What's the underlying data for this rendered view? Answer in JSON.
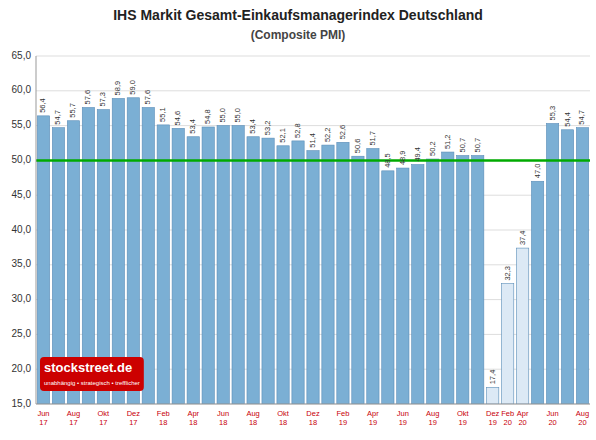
{
  "chart_data": {
    "type": "bar",
    "title": "IHS Markit Gesamt-Einkaufsmanagerindex Deutschland",
    "subtitle": "(Composite PMI)",
    "categories": [
      "Jun 17",
      null,
      "Aug 17",
      null,
      "Okt 17",
      null,
      "Dez 17",
      null,
      "Feb 18",
      null,
      "Apr 18",
      null,
      "Jun 18",
      null,
      "Aug 18",
      null,
      "Okt 18",
      null,
      "Dez 18",
      null,
      "Feb 19",
      null,
      "Apr 19",
      null,
      "Jun 19",
      null,
      "Aug 19",
      null,
      "Okt 19",
      null,
      "Dez 19",
      "Feb 20",
      "Apr 20",
      null,
      "Jun 20",
      null,
      "Aug 20"
    ],
    "values": [
      56.4,
      54.7,
      55.7,
      57.6,
      57.3,
      58.9,
      59.0,
      57.6,
      55.1,
      54.6,
      53.4,
      54.8,
      55.0,
      55.0,
      53.4,
      53.2,
      52.1,
      52.8,
      51.4,
      52.2,
      52.6,
      50.6,
      51.7,
      48.5,
      48.9,
      49.4,
      50.2,
      51.2,
      50.7,
      50.7,
      17.4,
      32.3,
      37.4,
      47.0,
      55.3,
      54.4,
      54.7
    ],
    "value_labels": [
      "56,4",
      "54,7",
      "55,7",
      "57,6",
      "57,3",
      "58,9",
      "59,0",
      "57,6",
      "55,1",
      "54,6",
      "53,4",
      "54,8",
      "55,0",
      "55,0",
      "53,4",
      "53,2",
      "52,1",
      "52,8",
      "51,4",
      "52,2",
      "52,6",
      "50,6",
      "51,7",
      "48,5",
      "48,9",
      "49,4",
      "50,2",
      "51,2",
      "50,7",
      "50,7",
      "17,4",
      "32,3",
      "37,4",
      "47,0",
      "55,3",
      "54,4",
      "54,7"
    ],
    "colors": [
      "#7bafd4",
      "#7bafd4",
      "#7bafd4",
      "#7bafd4",
      "#7bafd4",
      "#7bafd4",
      "#7bafd4",
      "#7bafd4",
      "#7bafd4",
      "#7bafd4",
      "#7bafd4",
      "#7bafd4",
      "#7bafd4",
      "#7bafd4",
      "#7bafd4",
      "#7bafd4",
      "#7bafd4",
      "#7bafd4",
      "#7bafd4",
      "#7bafd4",
      "#7bafd4",
      "#7bafd4",
      "#7bafd4",
      "#7bafd4",
      "#7bafd4",
      "#7bafd4",
      "#7bafd4",
      "#7bafd4",
      "#7bafd4",
      "#7bafd4",
      "#dce9f5",
      "#dce9f5",
      "#dce9f5",
      "#7bafd4",
      "#7bafd4",
      "#7bafd4",
      "#7bafd4"
    ],
    "reference_line": {
      "value": 50.0,
      "color": "#00aa00"
    },
    "ylim": [
      15.0,
      65.0
    ],
    "yticks": [
      {
        "value": 15.0,
        "label": "15,0"
      },
      {
        "value": 20.0,
        "label": "20,0"
      },
      {
        "value": 25.0,
        "label": "25,0"
      },
      {
        "value": 30.0,
        "label": "30,0"
      },
      {
        "value": 35.0,
        "label": "35,0"
      },
      {
        "value": 40.0,
        "label": "40,0"
      },
      {
        "value": 45.0,
        "label": "45,0"
      },
      {
        "value": 50.0,
        "label": "50,0"
      },
      {
        "value": 55.0,
        "label": "55,0"
      },
      {
        "value": 60.0,
        "label": "60,0"
      },
      {
        "value": 65.0,
        "label": "65,0"
      }
    ],
    "grid": true,
    "data_labels": true,
    "annotations": [
      "stockstreet.de",
      "unabhängig • strategisch • trefflicher"
    ]
  }
}
